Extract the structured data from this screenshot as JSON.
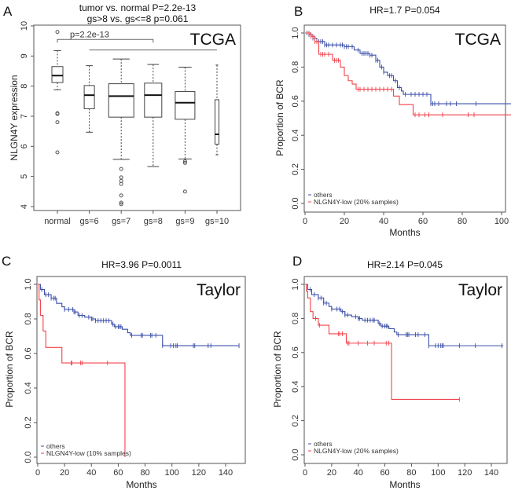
{
  "colors": {
    "others": "#3b4fa8",
    "low": "#f2434c",
    "axis": "#555555"
  },
  "chart_data": [
    {
      "panel": "A",
      "type": "box",
      "title_lines": [
        "tumor vs. normal P=2.2e-13",
        "gs>8 vs. gs<=8  p=0.061"
      ],
      "cohort": "TCGA",
      "ylabel": "NLGN4Y expression",
      "xlabel": "",
      "ylim": [
        4,
        10
      ],
      "yticks": [
        "4",
        "5",
        "6",
        "7",
        "8",
        "9",
        "10"
      ],
      "categories": [
        "normal",
        "gs=6",
        "gs=7",
        "gs=8",
        "gs=9",
        "gs=10"
      ],
      "boxes": [
        {
          "low": 7.88,
          "q1": 8.12,
          "median": 8.35,
          "q3": 8.65,
          "high": 9.18,
          "outliers": [
            9.8,
            7.1,
            7.08,
            6.8,
            5.8
          ]
        },
        {
          "low": 6.47,
          "q1": 7.25,
          "median": 7.7,
          "q3": 8.02,
          "high": 8.68,
          "outliers": []
        },
        {
          "low": 5.57,
          "q1": 6.97,
          "median": 7.67,
          "q3": 8.08,
          "high": 8.9,
          "outliers": [
            5.25,
            4.97,
            4.85,
            4.75,
            4.37,
            4.13,
            4.08
          ]
        },
        {
          "low": 5.33,
          "q1": 6.97,
          "median": 7.7,
          "q3": 8.1,
          "high": 8.72,
          "outliers": []
        },
        {
          "low": 5.58,
          "q1": 6.9,
          "median": 7.45,
          "q3": 7.82,
          "high": 8.63,
          "outliers": [
            5.5,
            5.45,
            4.5
          ]
        },
        {
          "low": 5.72,
          "q1": 6.07,
          "median": 6.4,
          "q3": 7.55,
          "high": 8.7,
          "outliers": [],
          "narrow": true
        }
      ],
      "bracket": {
        "from": "normal",
        "to": "gs=8",
        "y": 9.55,
        "label": "p=2.2e-13"
      },
      "line": {
        "from": "gs=6",
        "to": "gs=10",
        "y": 9.2
      }
    },
    {
      "panel": "B",
      "type": "survival",
      "title": "HR=1.7  P=0.054",
      "cohort": "TCGA",
      "xlabel": "Months",
      "ylabel": "Proportion of BCR",
      "xlim": [
        0,
        115
      ],
      "xticks": [
        "0",
        "20",
        "40",
        "60",
        "80",
        "100"
      ],
      "ylim": [
        0,
        1
      ],
      "yticks": [
        "0.0",
        "0.2",
        "0.4",
        "0.6",
        "0.8",
        "1.0"
      ],
      "series": [
        {
          "name": "others",
          "color_key": "others",
          "end": 115,
          "steps": [
            [
              0,
              1
            ],
            [
              2,
              0.99
            ],
            [
              4,
              0.97
            ],
            [
              6,
              0.95
            ],
            [
              10,
              0.93
            ],
            [
              20,
              0.92
            ],
            [
              25,
              0.9
            ],
            [
              28,
              0.88
            ],
            [
              33,
              0.87
            ],
            [
              36,
              0.84
            ],
            [
              38,
              0.8
            ],
            [
              40,
              0.77
            ],
            [
              42,
              0.75
            ],
            [
              45,
              0.72
            ],
            [
              47,
              0.68
            ],
            [
              49,
              0.66
            ],
            [
              50,
              0.64
            ],
            [
              64,
              0.585
            ]
          ],
          "censors": [
            1,
            2,
            3,
            4,
            5,
            6,
            7,
            8,
            9,
            10,
            11,
            12,
            14,
            16,
            18,
            19,
            20,
            21,
            22,
            24,
            27,
            29,
            30,
            31,
            32,
            33,
            34,
            36,
            37,
            39,
            40,
            43,
            44,
            46,
            48,
            51,
            54,
            56,
            58,
            60,
            62,
            64,
            65,
            66,
            68,
            72,
            74,
            77,
            87,
            108,
            114
          ]
        },
        {
          "name": "NLGN4Y-low (20% samples)",
          "color_key": "low",
          "end": 115,
          "steps": [
            [
              0,
              1
            ],
            [
              3,
              0.98
            ],
            [
              5,
              0.95
            ],
            [
              7,
              0.875
            ],
            [
              14,
              0.84
            ],
            [
              18,
              0.8
            ],
            [
              20,
              0.75
            ],
            [
              22,
              0.72
            ],
            [
              24,
              0.7
            ],
            [
              26,
              0.67
            ],
            [
              45,
              0.63
            ],
            [
              48,
              0.58
            ],
            [
              55,
              0.52
            ]
          ],
          "censors": [
            2,
            3,
            4,
            5,
            6,
            8,
            9,
            10,
            12,
            15,
            16,
            17,
            27,
            28,
            30,
            32,
            34,
            36,
            38,
            40,
            42,
            44,
            56,
            58,
            61,
            63,
            70,
            83,
            86,
            114
          ]
        }
      ]
    },
    {
      "panel": "C",
      "type": "survival",
      "title": "HR=3.96  P=0.0011",
      "cohort": "Taylor",
      "xlabel": "Months",
      "ylabel": "Proportion of BCR",
      "xlim": [
        0,
        150
      ],
      "xticks": [
        "0",
        "20",
        "40",
        "60",
        "80",
        "100",
        "120",
        "140"
      ],
      "ylim": [
        0,
        1
      ],
      "yticks": [
        "0.0",
        "0.2",
        "0.4",
        "0.6",
        "0.8",
        "1.0"
      ],
      "series": [
        {
          "name": "others",
          "color_key": "others",
          "end": 150,
          "steps": [
            [
              0,
              1
            ],
            [
              2,
              0.97
            ],
            [
              5,
              0.94
            ],
            [
              10,
              0.92
            ],
            [
              14,
              0.89
            ],
            [
              18,
              0.87
            ],
            [
              20,
              0.855
            ],
            [
              27,
              0.84
            ],
            [
              30,
              0.82
            ],
            [
              35,
              0.81
            ],
            [
              40,
              0.8
            ],
            [
              43,
              0.79
            ],
            [
              55,
              0.77
            ],
            [
              57,
              0.755
            ],
            [
              63,
              0.74
            ],
            [
              67,
              0.72
            ],
            [
              69,
              0.705
            ],
            [
              93,
              0.645
            ]
          ],
          "censors": [
            3,
            6,
            8,
            10,
            12,
            13,
            20,
            23,
            26,
            27,
            28,
            31,
            33,
            38,
            40,
            41,
            43,
            45,
            47,
            49,
            51,
            53,
            56,
            58,
            60,
            61,
            62,
            70,
            77,
            78,
            84,
            85,
            88,
            93,
            99,
            101,
            103,
            104,
            116,
            117,
            127,
            129,
            150
          ]
        },
        {
          "name": "NLGN4Y-low (10% samples)",
          "color_key": "low",
          "end": 65,
          "steps": [
            [
              0,
              1
            ],
            [
              1,
              0.91
            ],
            [
              2,
              0.82
            ],
            [
              4,
              0.73
            ],
            [
              6,
              0.635
            ],
            [
              18,
              0.545
            ],
            [
              65,
              0
            ]
          ],
          "censors": [
            25,
            25.5,
            32,
            33,
            52
          ]
        }
      ]
    },
    {
      "panel": "D",
      "type": "survival",
      "title": "HR=2.14  P=0.045",
      "cohort": "Taylor",
      "xlabel": "Months",
      "ylabel": "Proportion of BCR",
      "xlim": [
        0,
        150
      ],
      "xticks": [
        "0",
        "20",
        "40",
        "60",
        "80",
        "100",
        "120",
        "140"
      ],
      "ylim": [
        0,
        1
      ],
      "yticks": [
        "0.0",
        "0.2",
        "0.4",
        "0.6",
        "0.8",
        "1.0"
      ],
      "series": [
        {
          "name": "others",
          "color_key": "others",
          "end": 149,
          "steps": [
            [
              0,
              1
            ],
            [
              2,
              0.97
            ],
            [
              5,
              0.94
            ],
            [
              10,
              0.92
            ],
            [
              14,
              0.89
            ],
            [
              18,
              0.87
            ],
            [
              20,
              0.855
            ],
            [
              27,
              0.84
            ],
            [
              30,
              0.82
            ],
            [
              35,
              0.81
            ],
            [
              40,
              0.8
            ],
            [
              43,
              0.79
            ],
            [
              55,
              0.77
            ],
            [
              57,
              0.755
            ],
            [
              63,
              0.74
            ],
            [
              67,
              0.72
            ],
            [
              69,
              0.705
            ],
            [
              93,
              0.64
            ]
          ],
          "censors": [
            4,
            7,
            10,
            12,
            14,
            16,
            20,
            24,
            26,
            28,
            30,
            32,
            38,
            40,
            41,
            45,
            47,
            49,
            51,
            52,
            56,
            58,
            60,
            61,
            62,
            70,
            76,
            77,
            78,
            83,
            85,
            90,
            93,
            98,
            100,
            102,
            103,
            104,
            116,
            128,
            148
          ]
        },
        {
          "name": "NLGN4Y-low (20% samples)",
          "color_key": "low",
          "end": 116,
          "steps": [
            [
              0,
              1
            ],
            [
              1,
              0.96
            ],
            [
              2,
              0.92
            ],
            [
              4,
              0.84
            ],
            [
              6,
              0.8
            ],
            [
              10,
              0.76
            ],
            [
              18,
              0.71
            ],
            [
              31,
              0.655
            ],
            [
              65,
              0.325
            ]
          ],
          "censors": [
            8,
            11,
            25,
            26,
            28,
            32,
            33,
            40,
            47,
            52,
            61,
            63,
            116
          ]
        }
      ]
    }
  ]
}
